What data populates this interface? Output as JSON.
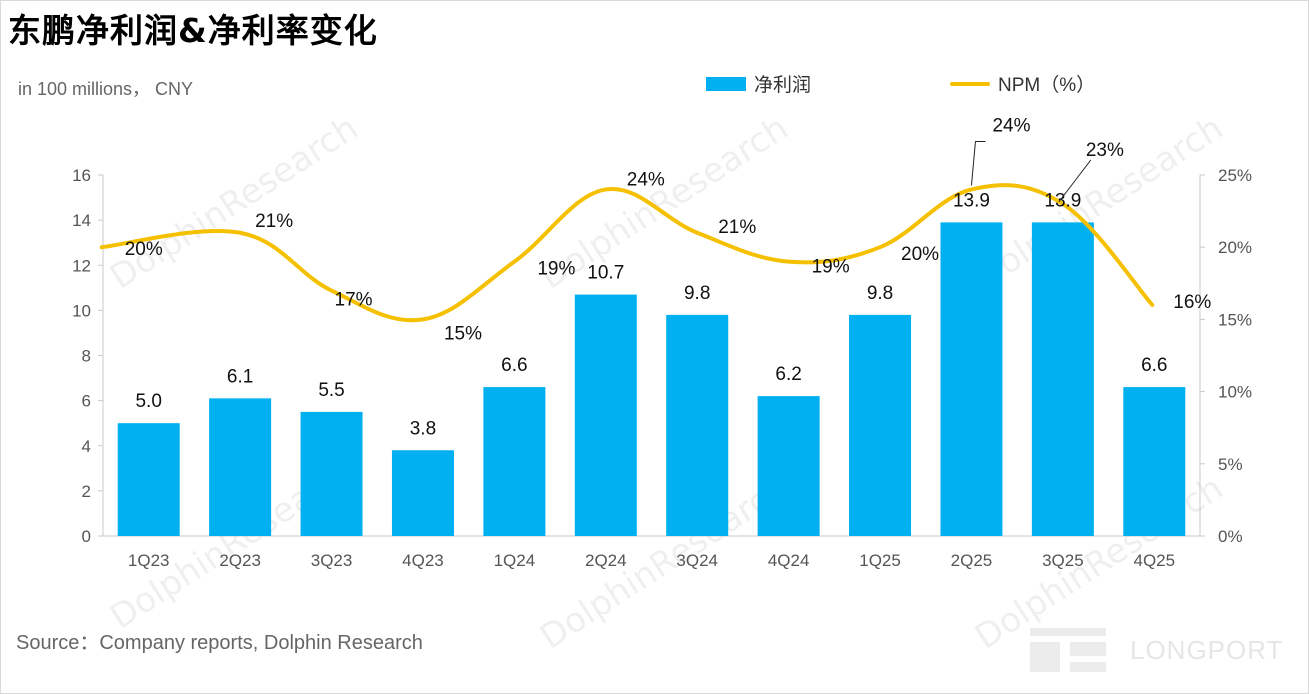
{
  "page": {
    "title": "东鹏净利润&净利率变化",
    "unit_note": "in 100 millions， CNY",
    "source": "Source：Company reports, Dolphin Research",
    "watermark": "DolphinResearch",
    "logo_text": "LONGPORT"
  },
  "legend": {
    "bar_label": "净利润",
    "line_label": "NPM（%）"
  },
  "colors": {
    "bar": "#00b0f0",
    "line": "#f5c000"
  },
  "chart_data": {
    "type": "bar",
    "categories": [
      "1Q23",
      "2Q23",
      "3Q23",
      "4Q23",
      "1Q24",
      "2Q24",
      "3Q24",
      "4Q24",
      "1Q25",
      "2Q25",
      "3Q25",
      "4Q25"
    ],
    "series": [
      {
        "name": "净利润",
        "type": "bar",
        "axis": "left",
        "values": [
          5.0,
          6.1,
          5.5,
          3.8,
          6.6,
          10.7,
          9.8,
          6.2,
          9.8,
          13.9,
          13.9,
          6.6
        ],
        "labels": [
          "5.0",
          "6.1",
          "5.5",
          "3.8",
          "6.6",
          "10.7",
          "9.8",
          "6.2",
          "9.8",
          "13.9",
          "13.9",
          "6.6"
        ]
      },
      {
        "name": "NPM（%）",
        "type": "line",
        "axis": "right",
        "values": [
          20,
          21,
          17,
          15,
          19,
          24,
          21,
          19,
          20,
          24,
          23,
          16
        ],
        "labels": [
          "20%",
          "21%",
          "17%",
          "15%",
          "19%",
          "24%",
          "21%",
          "19%",
          "20%",
          "24%",
          "23%",
          "16%"
        ]
      }
    ],
    "left_axis": {
      "ylim": [
        0,
        16
      ],
      "ticks": [
        "0",
        "2",
        "4",
        "6",
        "8",
        "10",
        "12",
        "14",
        "16"
      ]
    },
    "right_axis": {
      "ylim": [
        0,
        25
      ],
      "ticks": [
        "0%",
        "5%",
        "10%",
        "15%",
        "20%",
        "25%"
      ]
    },
    "legend_position": "top-right",
    "grid": false
  }
}
